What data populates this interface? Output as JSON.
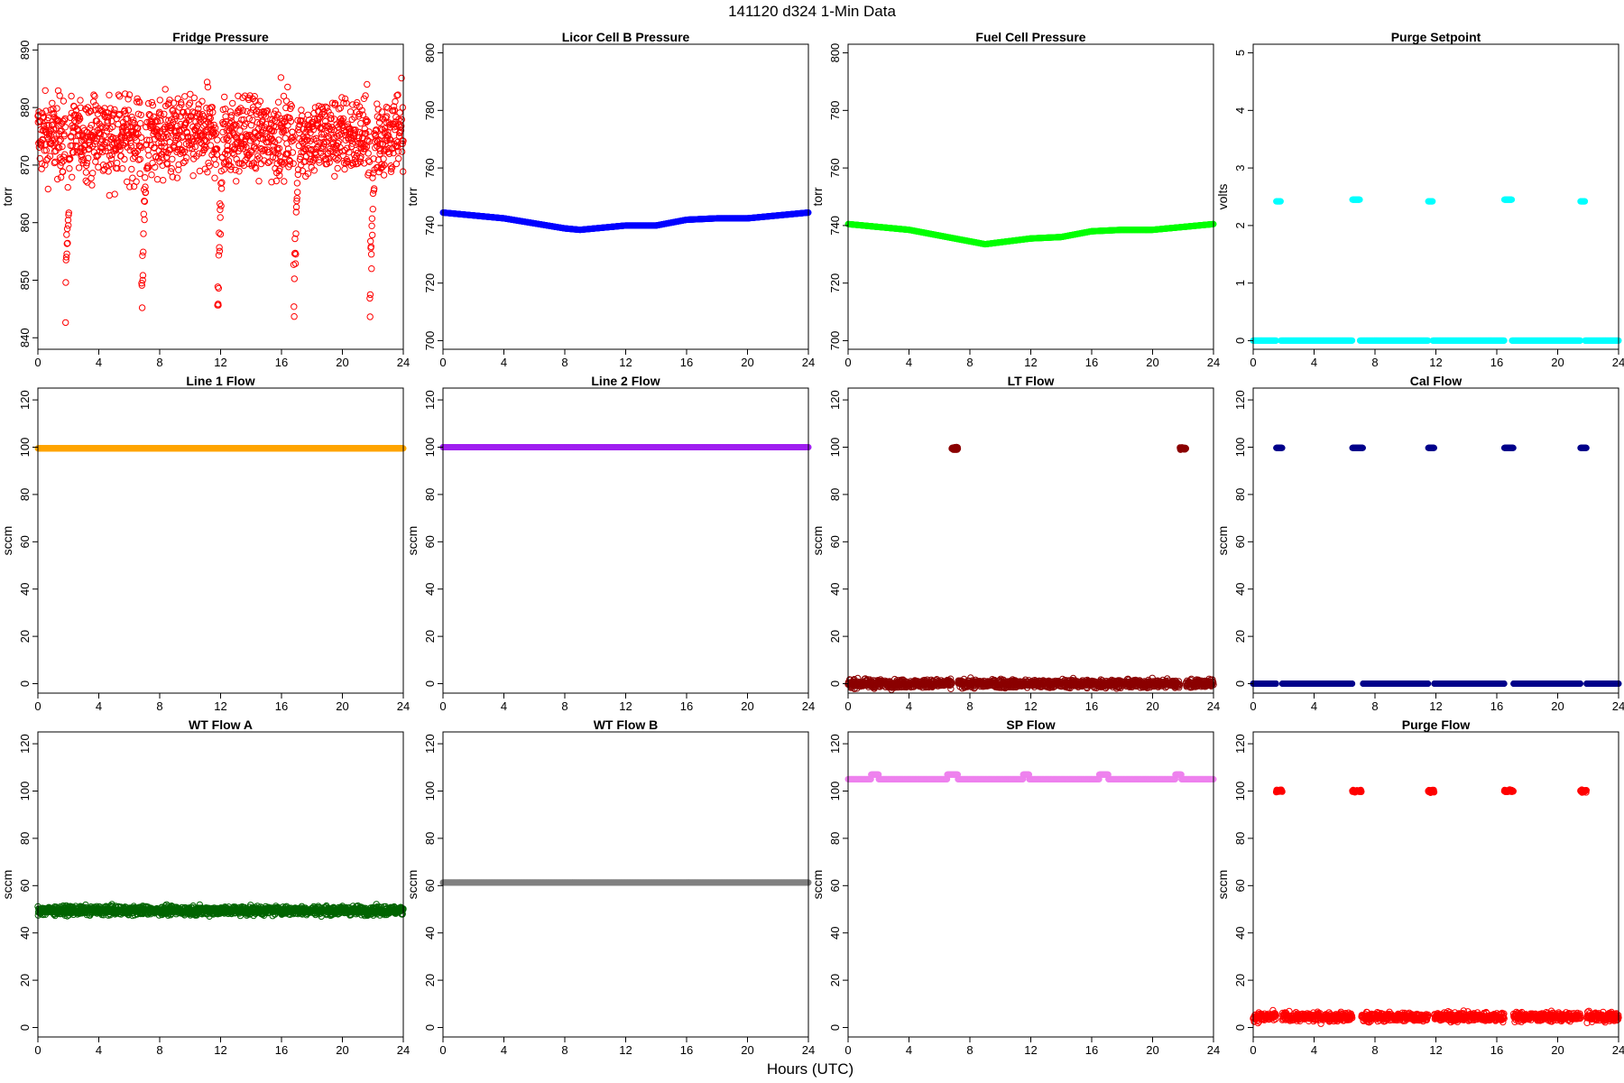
{
  "figure": {
    "title": "141120   d324   1-Min Data",
    "xlabel": "Hours (UTC)"
  },
  "chart_data": [
    {
      "type": "scatter",
      "title": "Fridge Pressure",
      "ylabel": "torr",
      "color": "#ff0000",
      "marker": "open-circle",
      "pattern": "noisy",
      "base": 875,
      "noise": 5,
      "dips": [
        1.8,
        6.8,
        11.8,
        16.8,
        21.8
      ],
      "dip_min": 840,
      "xlim": [
        0,
        24
      ],
      "ylim": [
        838,
        891
      ],
      "xticks": [
        0,
        4,
        8,
        12,
        16,
        20,
        24
      ],
      "yticks": [
        840,
        850,
        860,
        870,
        880,
        890
      ]
    },
    {
      "type": "scatter",
      "title": "Licor Cell B Pressure",
      "ylabel": "torr",
      "color": "#0000ff",
      "marker": "filled",
      "pattern": "curve",
      "curve": [
        [
          0,
          744.5
        ],
        [
          4,
          742.5
        ],
        [
          8,
          739
        ],
        [
          9,
          738.5
        ],
        [
          12,
          740
        ],
        [
          14,
          740
        ],
        [
          16,
          742
        ],
        [
          18,
          742.5
        ],
        [
          20,
          742.5
        ],
        [
          24,
          744.5
        ]
      ],
      "xlim": [
        0,
        24
      ],
      "ylim": [
        697,
        803
      ],
      "xticks": [
        0,
        4,
        8,
        12,
        16,
        20,
        24
      ],
      "yticks": [
        700,
        720,
        740,
        760,
        780,
        800
      ]
    },
    {
      "type": "scatter",
      "title": "Fuel Cell Pressure",
      "ylabel": "torr",
      "color": "#00ff00",
      "marker": "filled",
      "pattern": "curve",
      "curve": [
        [
          0,
          740.5
        ],
        [
          4,
          738.5
        ],
        [
          8,
          734.5
        ],
        [
          9,
          733.5
        ],
        [
          12,
          735.5
        ],
        [
          14,
          736
        ],
        [
          16,
          738
        ],
        [
          18,
          738.5
        ],
        [
          20,
          738.5
        ],
        [
          24,
          740.5
        ]
      ],
      "xlim": [
        0,
        24
      ],
      "ylim": [
        697,
        803
      ],
      "xticks": [
        0,
        4,
        8,
        12,
        16,
        20,
        24
      ],
      "yticks": [
        700,
        720,
        740,
        760,
        780,
        800
      ]
    },
    {
      "type": "scatter",
      "title": "Purge Setpoint",
      "ylabel": "volts",
      "color": "#00ffff",
      "marker": "filled",
      "pattern": "events",
      "base": 0,
      "events": [
        [
          1.5,
          1.8,
          2.42
        ],
        [
          6.5,
          7.0,
          2.45
        ],
        [
          11.5,
          11.8,
          2.42
        ],
        [
          16.5,
          17.0,
          2.45
        ],
        [
          21.5,
          21.8,
          2.42
        ]
      ],
      "xlim": [
        0,
        24
      ],
      "ylim": [
        -0.15,
        5.15
      ],
      "xticks": [
        0,
        4,
        8,
        12,
        16,
        20,
        24
      ],
      "yticks": [
        0,
        1,
        2,
        3,
        4,
        5
      ]
    },
    {
      "type": "scatter",
      "title": "Line 1 Flow",
      "ylabel": "sccm",
      "color": "#ffa500",
      "marker": "filled",
      "pattern": "flat",
      "base": 99.5,
      "xlim": [
        0,
        24
      ],
      "ylim": [
        -4,
        125
      ],
      "xticks": [
        0,
        4,
        8,
        12,
        16,
        20,
        24
      ],
      "yticks": [
        0,
        20,
        40,
        60,
        80,
        100,
        120
      ]
    },
    {
      "type": "scatter",
      "title": "Line 2 Flow",
      "ylabel": "sccm",
      "color": "#a020f0",
      "marker": "filled",
      "pattern": "flat",
      "base": 100,
      "xlim": [
        0,
        24
      ],
      "ylim": [
        -4,
        125
      ],
      "xticks": [
        0,
        4,
        8,
        12,
        16,
        20,
        24
      ],
      "yticks": [
        0,
        20,
        40,
        60,
        80,
        100,
        120
      ]
    },
    {
      "type": "scatter",
      "title": "LT Flow",
      "ylabel": "sccm",
      "color": "#8b0000",
      "marker": "open-circle",
      "pattern": "events",
      "base": 0,
      "noise": 1.2,
      "events": [
        [
          6.8,
          7.2,
          99.5
        ],
        [
          21.8,
          22.2,
          99.5
        ]
      ],
      "xlim": [
        0,
        24
      ],
      "ylim": [
        -4,
        125
      ],
      "xticks": [
        0,
        4,
        8,
        12,
        16,
        20,
        24
      ],
      "yticks": [
        0,
        20,
        40,
        60,
        80,
        100,
        120
      ]
    },
    {
      "type": "scatter",
      "title": "Cal Flow",
      "ylabel": "sccm",
      "color": "#00008b",
      "marker": "filled",
      "pattern": "events",
      "base": 0,
      "events": [
        [
          1.5,
          1.9,
          99.7
        ],
        [
          6.5,
          7.2,
          99.7
        ],
        [
          11.5,
          11.9,
          99.7
        ],
        [
          16.5,
          17.1,
          99.7
        ],
        [
          21.5,
          21.9,
          99.7
        ]
      ],
      "xlim": [
        0,
        24
      ],
      "ylim": [
        -4,
        125
      ],
      "xticks": [
        0,
        4,
        8,
        12,
        16,
        20,
        24
      ],
      "yticks": [
        0,
        20,
        40,
        60,
        80,
        100,
        120
      ]
    },
    {
      "type": "scatter",
      "title": "WT Flow A",
      "ylabel": "sccm",
      "color": "#006400",
      "marker": "open-circle",
      "pattern": "noisy",
      "base": 49.5,
      "noise": 1.3,
      "xlim": [
        0,
        24
      ],
      "ylim": [
        -4,
        125
      ],
      "xticks": [
        0,
        4,
        8,
        12,
        16,
        20,
        24
      ],
      "yticks": [
        0,
        20,
        40,
        60,
        80,
        100,
        120
      ]
    },
    {
      "type": "scatter",
      "title": "WT Flow B",
      "ylabel": "sccm",
      "color": "#808080",
      "marker": "filled",
      "pattern": "flat",
      "base": 61.3,
      "xlim": [
        0,
        24
      ],
      "ylim": [
        -4,
        125
      ],
      "xticks": [
        0,
        4,
        8,
        12,
        16,
        20,
        24
      ],
      "yticks": [
        0,
        20,
        40,
        60,
        80,
        100,
        120
      ]
    },
    {
      "type": "scatter",
      "title": "SP Flow",
      "ylabel": "sccm",
      "color": "#ee82ee",
      "marker": "filled",
      "pattern": "events",
      "base": 105,
      "events": [
        [
          1.5,
          2.0,
          107
        ],
        [
          6.5,
          7.2,
          107
        ],
        [
          11.5,
          11.9,
          107
        ],
        [
          16.5,
          17.1,
          107
        ],
        [
          21.5,
          21.9,
          107
        ]
      ],
      "xlim": [
        0,
        24
      ],
      "ylim": [
        -4,
        125
      ],
      "xticks": [
        0,
        4,
        8,
        12,
        16,
        20,
        24
      ],
      "yticks": [
        0,
        20,
        40,
        60,
        80,
        100,
        120
      ]
    },
    {
      "type": "scatter",
      "title": "Purge Flow",
      "ylabel": "sccm",
      "color": "#ff0000",
      "marker": "open-circle",
      "pattern": "events",
      "base": 4.5,
      "noise": 1.3,
      "events": [
        [
          1.5,
          1.9,
          100
        ],
        [
          6.5,
          7.1,
          100
        ],
        [
          11.5,
          11.9,
          100
        ],
        [
          16.5,
          17.1,
          100
        ],
        [
          21.5,
          21.9,
          100
        ]
      ],
      "xlim": [
        0,
        24
      ],
      "ylim": [
        -4,
        125
      ],
      "xticks": [
        0,
        4,
        8,
        12,
        16,
        20,
        24
      ],
      "yticks": [
        0,
        20,
        40,
        60,
        80,
        100,
        120
      ]
    }
  ]
}
